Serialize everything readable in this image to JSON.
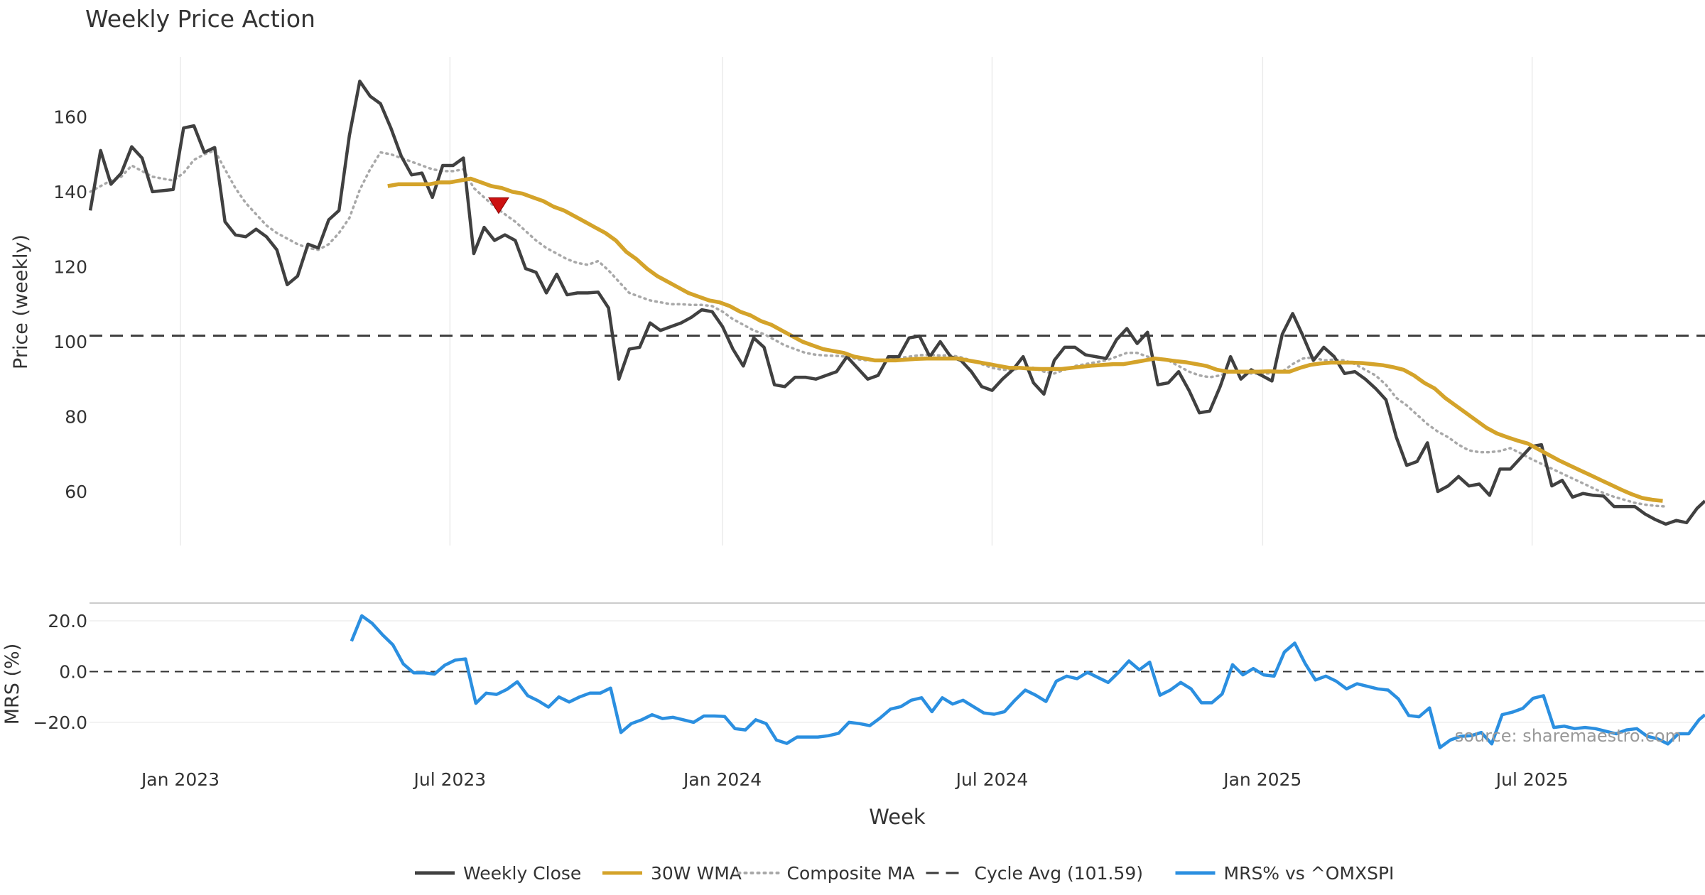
{
  "chart_data": [
    {
      "type": "line",
      "title": "Weekly Price Action",
      "xlabel": "Week",
      "ylabel": "Price (weekly)",
      "ylim": [
        45.6,
        176
      ],
      "yticks": [
        60,
        80,
        100,
        120,
        140,
        160
      ],
      "xticks": [
        "Jan 2023",
        "Jul 2023",
        "Jan 2024",
        "Jul 2024",
        "Jan 2025",
        "Jul 2025"
      ],
      "xtick_weeks": [
        0,
        26,
        52.3,
        78.3,
        104.4,
        130.4
      ],
      "grid": true,
      "cycle_avg": 101.59,
      "signal": {
        "type": "sell-triangle",
        "week": 30.7,
        "value": 136.5,
        "color": "#cc1111"
      },
      "series": [
        {
          "name": "Weekly Close",
          "color": "#404040",
          "start_week": -8.7,
          "values": [
            135,
            151,
            142,
            145,
            152,
            149,
            140,
            140.3,
            140.6,
            157,
            157.6,
            150.5,
            151.8,
            132,
            128.5,
            128,
            130,
            128,
            124.5,
            115.2,
            117.5,
            126,
            125,
            132.5,
            135,
            155,
            169.5,
            165.5,
            163.5,
            157,
            149.5,
            144.5,
            145,
            138.5,
            147,
            147,
            149,
            123.5,
            130.5,
            127,
            128.5,
            127,
            119.5,
            118.5,
            113,
            118,
            112.5,
            113,
            113,
            113.2,
            109,
            90,
            98,
            98.5,
            105,
            103,
            104,
            105,
            106.5,
            108.5,
            108,
            104,
            98,
            93.5,
            101,
            98.5,
            88.5,
            88,
            90.5,
            90.5,
            90,
            91,
            92,
            96,
            93,
            90,
            91,
            96,
            96,
            101,
            101.5,
            96,
            100,
            96,
            95,
            92,
            88,
            87,
            90,
            92.5,
            96,
            89,
            86,
            95,
            98.5,
            98.5,
            96.5,
            96,
            95.5,
            100.5,
            103.5,
            99.5,
            102.5,
            88.5,
            89,
            92,
            87,
            81,
            81.5,
            88,
            96,
            90,
            92.5,
            91,
            89.5,
            102,
            107.5,
            101.5,
            95,
            98.5,
            96,
            91.5,
            92,
            90,
            87.5,
            84.5,
            74.5,
            67,
            68,
            73,
            60,
            61.5,
            64,
            61.5,
            62,
            59,
            66,
            66,
            69,
            72,
            72.5,
            61.5,
            63,
            58.5,
            59.5,
            59,
            58.8,
            56,
            56,
            56,
            54,
            52.5,
            51.3,
            52.3,
            51.7,
            55.5,
            57.5
          ]
        },
        {
          "name": "30W WMA",
          "color": "#d4a32a",
          "start_week": 20,
          "values": [
            141.5,
            142,
            142,
            142,
            142,
            142.5,
            142.5,
            143,
            143.5,
            142.5,
            141.5,
            141,
            140,
            139.5,
            138.5,
            137.5,
            136,
            135,
            133.5,
            132,
            130.5,
            129,
            127,
            124,
            122,
            119.5,
            117.5,
            116,
            114.5,
            113,
            112,
            111,
            110.5,
            109.5,
            108,
            107,
            105.5,
            104.5,
            103,
            101.5,
            100,
            99,
            98,
            97.5,
            97,
            96,
            95.5,
            95,
            95,
            95,
            95.2,
            95.4,
            95.5,
            95.5,
            95.5,
            95.5,
            95,
            94.5,
            94,
            93.5,
            93,
            93,
            92.8,
            92.7,
            92.7,
            92.7,
            93,
            93.3,
            93.6,
            93.8,
            94,
            94,
            94.5,
            95,
            95.5,
            95.2,
            94.8,
            94.5,
            94,
            93.5,
            92.5,
            92,
            92,
            92,
            92,
            92.1,
            92,
            92,
            93,
            93.8,
            94.2,
            94.4,
            94.4,
            94.4,
            94.3,
            94,
            93.7,
            93.2,
            92.5,
            91,
            89,
            87.5,
            85,
            83,
            81,
            79,
            77,
            75.5,
            74.5,
            73.6,
            72.8,
            71.3,
            69.8,
            68.3,
            67,
            65.7,
            64.4,
            63.1,
            61.8,
            60.5,
            59.3,
            58.3,
            57.8,
            57.5
          ]
        },
        {
          "name": "Composite MA",
          "color": "#a8a8a8",
          "start_week": -8.7,
          "values": [
            140,
            141.5,
            143,
            144,
            147,
            145.5,
            144,
            143.5,
            143,
            145,
            148.5,
            150,
            151,
            146,
            141,
            137,
            134,
            131,
            129,
            127.5,
            126,
            125,
            124.5,
            126,
            129,
            133,
            140.5,
            146,
            150.5,
            150,
            149,
            148,
            147,
            146,
            145.5,
            145.5,
            146,
            141,
            138.5,
            136,
            134,
            132,
            129.5,
            127,
            125,
            123.5,
            122,
            121,
            120.5,
            121.5,
            119,
            116,
            113,
            112,
            111,
            110.5,
            110,
            110,
            109.8,
            109.8,
            109.5,
            108,
            106,
            104.5,
            103,
            102,
            100.5,
            99,
            98,
            97,
            96.5,
            96.3,
            96.2,
            96,
            95.3,
            95,
            95,
            95.2,
            95.6,
            96,
            96.4,
            96.5,
            96.3,
            96.4,
            95.8,
            95,
            94,
            93,
            92.5,
            92.5,
            93,
            93,
            92,
            91.5,
            92.5,
            93.5,
            94,
            94.5,
            95,
            96,
            97,
            97,
            96,
            95.5,
            95,
            93.5,
            92,
            91,
            90.5,
            91,
            92,
            92,
            91.5,
            91.5,
            91.5,
            92,
            94,
            95.5,
            95.8,
            95,
            95.2,
            95,
            94,
            92.5,
            91,
            88.5,
            85,
            83,
            80.5,
            78,
            76,
            74.5,
            72.5,
            71,
            70.5,
            70.5,
            70.8,
            71.6,
            70.2,
            68.7,
            67.4,
            66.1,
            64.8,
            63.5,
            62.2,
            60.9,
            59.6,
            58.6,
            57.8,
            57,
            56.5,
            56.2,
            56
          ]
        }
      ]
    },
    {
      "type": "line",
      "xlabel": "Week",
      "ylabel": "MRS (%)",
      "ylim": [
        -31.5,
        27
      ],
      "yticks": [
        20,
        0,
        -20
      ],
      "ytick_labels": [
        "20.0",
        "0.0",
        "−20.0"
      ],
      "xticks": [
        "Jan 2023",
        "Jul 2023",
        "Jan 2024",
        "Jul 2024",
        "Jan 2025",
        "Jul 2025"
      ],
      "grid": true,
      "zero_line": 0,
      "annotation": "source: sharemaestro.com",
      "series": [
        {
          "name": "MRS% vs ^OMXSPI",
          "color": "#2b8fe0",
          "start_week": 16.5,
          "values": [
            12,
            22,
            19,
            14.5,
            10.5,
            3,
            -0.5,
            -0.5,
            -1,
            2.5,
            4.5,
            5,
            -12.5,
            -8.5,
            -9,
            -7,
            -4,
            -9.5,
            -11.5,
            -14,
            -10,
            -12,
            -10,
            -8.5,
            -8.5,
            -6.5,
            -24,
            -20.5,
            -19,
            -17,
            -18.5,
            -18,
            -19,
            -20,
            -17.5,
            -17.5,
            -17.7,
            -22.5,
            -23,
            -19,
            -20.5,
            -27,
            -28.3,
            -25.8,
            -25.8,
            -25.8,
            -25.3,
            -24.3,
            -20,
            -20.5,
            -21.3,
            -18.3,
            -14.8,
            -13.8,
            -11.3,
            -10.3,
            -15.8,
            -10.3,
            -12.8,
            -11.3,
            -13.8,
            -16.3,
            -16.8,
            -15.8,
            -11.3,
            -7.3,
            -9.3,
            -11.8,
            -3.8,
            -1.8,
            -2.8,
            -0.3,
            -2.3,
            -4.3,
            -0.3,
            4.2,
            0.7,
            3.7,
            -9.3,
            -7.3,
            -4.3,
            -6.8,
            -12.3,
            -12.3,
            -8.8,
            2.7,
            -1.3,
            1.2,
            -1.3,
            -1.8,
            7.7,
            11.2,
            3.2,
            -3.3,
            -1.8,
            -3.8,
            -6.8,
            -4.8,
            -5.8,
            -6.8,
            -7.3,
            -10.8,
            -17.3,
            -17.8,
            -14.3,
            -30,
            -27,
            -25.5,
            -25.3,
            -24,
            -28.5,
            -17,
            -16,
            -14.5,
            -10.5,
            -9.5,
            -22,
            -21.5,
            -22.5,
            -22,
            -22.5,
            -23.5,
            -24.5,
            -23,
            -22.5,
            -25.5,
            -26.5,
            -28.5,
            -24.5,
            -24.5,
            -19,
            -17
          ]
        }
      ]
    }
  ],
  "legend": {
    "items": [
      {
        "label": "Weekly Close",
        "color": "#404040",
        "style": "solid"
      },
      {
        "label": "30W WMA",
        "color": "#d4a32a",
        "style": "solid"
      },
      {
        "label": "Composite MA",
        "color": "#a8a8a8",
        "style": "dotted"
      },
      {
        "label": "Cycle Avg (101.59)",
        "color": "#3c3c3c",
        "style": "dashed"
      },
      {
        "label": "MRS% vs ^OMXSPI",
        "color": "#2b8fe0",
        "style": "solid"
      }
    ]
  }
}
